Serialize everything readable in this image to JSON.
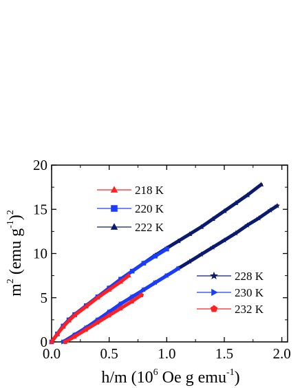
{
  "chart_data": {
    "type": "scatter",
    "xlabel": {
      "base": "h/m (10",
      "sup1": "6",
      "mid": " Oe g emu",
      "sup2": "-1",
      "end": ")"
    },
    "ylabel": {
      "base": "m",
      "sup1": "2",
      "mid": " (emu g",
      "sup2": "-1",
      "end": ")",
      "sup3": "2"
    },
    "xlim": [
      0.0,
      2.05
    ],
    "ylim": [
      0,
      20
    ],
    "xticks": [
      "0.0",
      "0.5",
      "1.0",
      "1.5",
      "2.0"
    ],
    "xtick_values": [
      0.0,
      0.5,
      1.0,
      1.5,
      2.0
    ],
    "yticks": [
      "0",
      "5",
      "10",
      "15",
      "20"
    ],
    "ytick_values": [
      0,
      5,
      10,
      15,
      20
    ],
    "grid": false,
    "series": [
      {
        "name": "218 K",
        "color": "#ff2020",
        "marker": "triangle-up",
        "legend": "left",
        "x": [
          0.0,
          0.05,
          0.1,
          0.15,
          0.2,
          0.3,
          0.4,
          0.5,
          0.6,
          0.67
        ],
        "y": [
          0.0,
          0.9,
          1.7,
          2.4,
          3.0,
          4.0,
          5.0,
          5.9,
          6.8,
          7.5
        ]
      },
      {
        "name": "220 K",
        "color": "#1a3cff",
        "marker": "square",
        "legend": "left",
        "x": [
          0.0,
          0.05,
          0.1,
          0.15,
          0.2,
          0.3,
          0.4,
          0.5,
          0.6,
          0.7,
          0.8,
          0.9,
          1.0
        ],
        "y": [
          0.0,
          0.9,
          1.8,
          2.5,
          3.1,
          4.1,
          5.1,
          6.1,
          7.1,
          8.0,
          8.9,
          9.7,
          10.5
        ]
      },
      {
        "name": "222 K",
        "color": "#0a1a6e",
        "marker": "triangle-up",
        "legend": "left",
        "x": [
          0.0,
          0.05,
          0.1,
          0.15,
          0.2,
          0.3,
          0.4,
          0.5,
          0.6,
          0.7,
          0.8,
          0.9,
          1.0,
          1.1,
          1.2,
          1.3,
          1.4,
          1.5,
          1.6,
          1.7,
          1.82
        ],
        "y": [
          0.0,
          0.9,
          1.8,
          2.5,
          3.1,
          4.1,
          5.1,
          6.1,
          7.1,
          8.0,
          8.9,
          9.8,
          10.6,
          11.4,
          12.2,
          13.0,
          13.9,
          14.8,
          15.7,
          16.6,
          17.8
        ]
      },
      {
        "name": "228 K",
        "color": "#0a1a6e",
        "marker": "star",
        "legend": "right",
        "x": [
          0.1,
          0.2,
          0.3,
          0.4,
          0.5,
          0.6,
          0.7,
          0.8,
          0.9,
          1.0,
          1.1,
          1.2,
          1.3,
          1.4,
          1.5,
          1.6,
          1.7,
          1.8,
          1.9,
          1.96
        ],
        "y": [
          0.0,
          0.8,
          1.6,
          2.5,
          3.4,
          4.3,
          5.1,
          5.9,
          6.7,
          7.5,
          8.3,
          9.1,
          9.9,
          10.7,
          11.5,
          12.3,
          13.2,
          14.0,
          14.9,
          15.4
        ]
      },
      {
        "name": "230 K",
        "color": "#1a3cff",
        "marker": "triangle-right",
        "legend": "right",
        "x": [
          0.1,
          0.2,
          0.3,
          0.4,
          0.5,
          0.6,
          0.7,
          0.8,
          0.9,
          1.0,
          1.1
        ],
        "y": [
          0.0,
          0.8,
          1.6,
          2.5,
          3.4,
          4.3,
          5.1,
          5.9,
          6.7,
          7.5,
          8.3
        ]
      },
      {
        "name": "232 K",
        "color": "#ff2020",
        "marker": "pentagon",
        "legend": "right",
        "x": [
          0.12,
          0.2,
          0.3,
          0.4,
          0.5,
          0.6,
          0.7,
          0.78
        ],
        "y": [
          0.0,
          0.6,
          1.4,
          2.2,
          3.0,
          3.8,
          4.6,
          5.3
        ]
      }
    ]
  }
}
